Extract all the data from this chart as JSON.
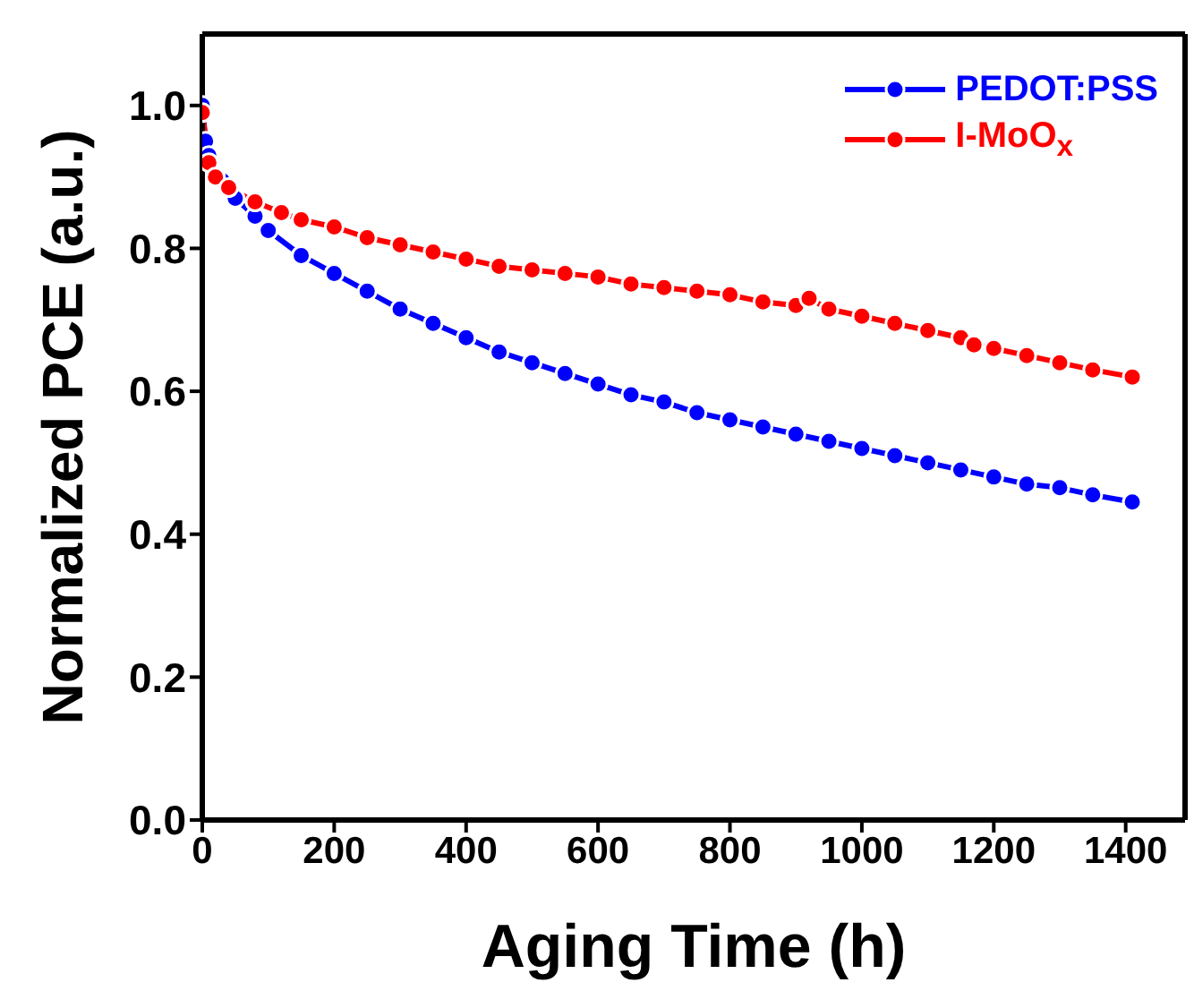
{
  "chart_data": {
    "type": "line",
    "xlabel": "Aging Time (h)",
    "ylabel": "Normalized PCE (a.u.)",
    "xlim": [
      0,
      1490
    ],
    "xticks": [
      0,
      200,
      400,
      600,
      800,
      1000,
      1200,
      1400
    ],
    "ylim": [
      0,
      1.1
    ],
    "yticks": [
      {
        "value": 0,
        "label": "0.0"
      },
      0.2,
      0.4,
      0.6,
      0.8,
      {
        "value": 1,
        "label": "1.0"
      }
    ],
    "grid": false,
    "legend": "top right",
    "marker": "circle",
    "line_style": "solid",
    "series": [
      {
        "name": "PEDOT:PSS",
        "color": "#0000ff",
        "x": [
          0,
          5,
          10,
          30,
          50,
          80,
          100,
          150,
          200,
          250,
          300,
          350,
          400,
          450,
          500,
          550,
          600,
          650,
          700,
          750,
          800,
          850,
          900,
          950,
          1000,
          1050,
          1100,
          1150,
          1200,
          1250,
          1300,
          1350,
          1410
        ],
        "values": [
          1.0,
          0.95,
          0.93,
          0.895,
          0.87,
          0.845,
          0.825,
          0.79,
          0.765,
          0.74,
          0.715,
          0.695,
          0.675,
          0.655,
          0.64,
          0.625,
          0.61,
          0.595,
          0.585,
          0.57,
          0.56,
          0.55,
          0.54,
          0.53,
          0.52,
          0.51,
          0.5,
          0.49,
          0.48,
          0.47,
          0.465,
          0.455,
          0.445
        ]
      },
      {
        "name": "I-MoO$_{x}$",
        "color": "#ff0000",
        "x": [
          0,
          10,
          20,
          40,
          80,
          120,
          150,
          200,
          250,
          300,
          350,
          400,
          450,
          500,
          550,
          600,
          650,
          700,
          750,
          800,
          850,
          900,
          920,
          950,
          1000,
          1050,
          1100,
          1150,
          1170,
          1200,
          1250,
          1300,
          1350,
          1410
        ],
        "values": [
          0.99,
          0.92,
          0.9,
          0.885,
          0.865,
          0.85,
          0.84,
          0.83,
          0.815,
          0.805,
          0.795,
          0.785,
          0.775,
          0.77,
          0.765,
          0.76,
          0.75,
          0.745,
          0.74,
          0.735,
          0.725,
          0.72,
          0.73,
          0.715,
          0.705,
          0.695,
          0.685,
          0.675,
          0.665,
          0.66,
          0.65,
          0.64,
          0.63,
          0.62
        ]
      }
    ]
  }
}
